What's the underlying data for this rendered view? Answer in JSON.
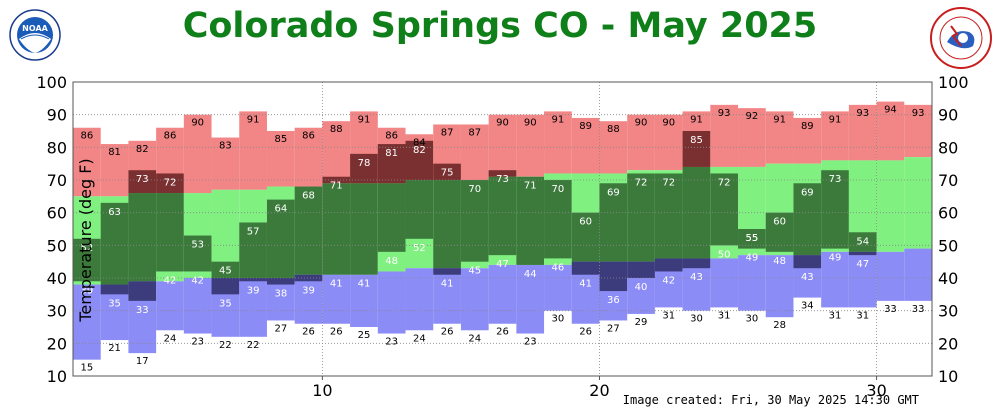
{
  "title": "Colorado Springs CO - May 2025",
  "footer": "Image created: Fri, 30 May 2025 14:30 GMT",
  "colors": {
    "title": "#0f7f1a",
    "record_high_band": "#f28585",
    "normal_band": "#80f080",
    "record_low_band": "#8c8cf6",
    "observed_overlap_high": "#7a3030",
    "observed_normal": "#3c7a3c",
    "observed_overlap_low": "#3c3c7c"
  },
  "logos": {
    "left": "noaa-logo",
    "right": "nws-logo"
  },
  "chart_data": {
    "type": "bar",
    "ylabel": "Temperature (deg F)",
    "ylim": [
      10,
      100
    ],
    "yticks": [
      10,
      20,
      30,
      40,
      50,
      60,
      70,
      80,
      90,
      100
    ],
    "xlim": [
      1,
      31
    ],
    "xticks": [
      10,
      20,
      30
    ],
    "grid": true,
    "days": [
      1,
      2,
      3,
      4,
      5,
      6,
      7,
      8,
      9,
      10,
      11,
      12,
      13,
      14,
      15,
      16,
      17,
      18,
      19,
      20,
      21,
      22,
      23,
      24,
      25,
      26,
      27,
      28,
      29,
      30,
      31
    ],
    "record_high": [
      86,
      81,
      82,
      86,
      90,
      83,
      91,
      85,
      86,
      88,
      91,
      86,
      84,
      87,
      87,
      90,
      90,
      91,
      89,
      88,
      90,
      90,
      91,
      93,
      92,
      91,
      89,
      91,
      93,
      94,
      93
    ],
    "normal_high": [
      65,
      65,
      66,
      66,
      66,
      67,
      67,
      68,
      68,
      69,
      69,
      69,
      70,
      70,
      70,
      71,
      71,
      72,
      72,
      72,
      73,
      73,
      74,
      74,
      74,
      75,
      75,
      76,
      76,
      76,
      77
    ],
    "normal_low": [
      38,
      38,
      39,
      39,
      40,
      40,
      40,
      40,
      41,
      41,
      41,
      42,
      43,
      43,
      43,
      44,
      44,
      44,
      45,
      45,
      45,
      46,
      46,
      46,
      47,
      47,
      47,
      48,
      48,
      48,
      49
    ],
    "record_low": [
      15,
      21,
      17,
      24,
      23,
      22,
      22,
      27,
      26,
      26,
      25,
      23,
      24,
      26,
      24,
      26,
      23,
      30,
      26,
      27,
      29,
      31,
      30,
      31,
      30,
      28,
      34,
      31,
      31,
      33,
      33
    ],
    "observed_high": [
      52,
      63,
      73,
      72,
      53,
      45,
      57,
      64,
      68,
      71,
      78,
      81,
      82,
      75,
      70,
      73,
      71,
      70,
      60,
      69,
      72,
      72,
      85,
      72,
      55,
      60,
      69,
      73,
      54,
      null,
      null
    ],
    "observed_low": [
      39,
      35,
      33,
      42,
      42,
      35,
      39,
      38,
      39,
      41,
      41,
      48,
      52,
      41,
      45,
      47,
      44,
      46,
      41,
      36,
      40,
      42,
      43,
      50,
      49,
      48,
      43,
      49,
      47,
      null,
      null
    ],
    "extra_band_labels": [
      null,
      null,
      null,
      null,
      null,
      null,
      null,
      null,
      null,
      null,
      null,
      null,
      null,
      null,
      null,
      null,
      null,
      null,
      null,
      null,
      null,
      null,
      null,
      null,
      55,
      null,
      null,
      null,
      null,
      null,
      null
    ]
  }
}
